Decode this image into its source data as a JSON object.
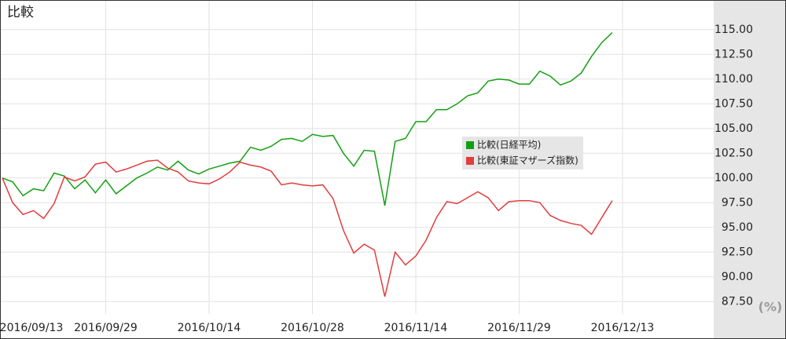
{
  "chart_data": {
    "type": "line",
    "title": "比較",
    "y_unit": "(%)",
    "categories": [
      "2016/09/13",
      null,
      null,
      null,
      null,
      null,
      null,
      null,
      null,
      null,
      "2016/09/29",
      null,
      null,
      null,
      null,
      null,
      null,
      null,
      null,
      null,
      "2016/10/14",
      null,
      null,
      null,
      null,
      null,
      null,
      null,
      null,
      null,
      "2016/10/28",
      null,
      null,
      null,
      null,
      null,
      null,
      null,
      null,
      null,
      "2016/11/14",
      null,
      null,
      null,
      null,
      null,
      null,
      null,
      null,
      null,
      "2016/11/29",
      null,
      null,
      null,
      null,
      null,
      null,
      null,
      null,
      null,
      "2016/12/13"
    ],
    "series": [
      {
        "name": "比較(日経平均)",
        "color": "#12a012",
        "values": [
          100.0,
          99.6,
          98.2,
          98.9,
          98.7,
          100.5,
          100.2,
          98.9,
          99.8,
          98.5,
          99.8,
          98.4,
          99.2,
          100.0,
          100.5,
          101.1,
          100.8,
          101.7,
          100.8,
          100.4,
          100.9,
          101.2,
          101.5,
          101.7,
          103.1,
          102.8,
          103.2,
          103.9,
          104.0,
          103.7,
          104.4,
          104.2,
          104.3,
          102.5,
          101.2,
          102.8,
          102.7,
          97.2,
          103.7,
          104.0,
          105.7,
          105.7,
          106.9,
          106.9,
          107.5,
          108.3,
          108.6,
          109.8,
          110.0,
          109.9,
          109.5,
          109.5,
          110.8,
          110.3,
          109.4,
          109.8,
          110.6,
          112.3,
          113.7,
          114.7,
          null
        ]
      },
      {
        "name": "比較(東証マザーズ指数)",
        "color": "#e23c3c",
        "values": [
          100.0,
          97.5,
          96.3,
          96.7,
          95.9,
          97.4,
          100.1,
          99.7,
          100.1,
          101.4,
          101.6,
          100.6,
          100.9,
          101.3,
          101.7,
          101.8,
          101.0,
          100.6,
          99.7,
          99.5,
          99.4,
          99.9,
          100.6,
          101.6,
          101.3,
          101.1,
          100.7,
          99.3,
          99.5,
          99.3,
          99.2,
          99.3,
          97.9,
          94.7,
          92.4,
          93.3,
          92.7,
          88.0,
          92.5,
          91.2,
          92.1,
          93.7,
          96.0,
          97.6,
          97.4,
          98.0,
          98.6,
          98.0,
          96.7,
          97.6,
          97.7,
          97.7,
          97.5,
          96.2,
          95.7,
          95.4,
          95.2,
          94.3,
          96.0,
          97.7,
          null
        ]
      }
    ],
    "ylim": [
      86.25,
      118.0
    ],
    "yticks": [
      {
        "value": 87.5,
        "label": "87.50"
      },
      {
        "value": 90,
        "label": "90.00"
      },
      {
        "value": 92.5,
        "label": "92.50"
      },
      {
        "value": 95,
        "label": "95.00"
      },
      {
        "value": 97.5,
        "label": "97.50"
      },
      {
        "value": 100,
        "label": "100.00"
      },
      {
        "value": 102.5,
        "label": "102.50"
      },
      {
        "value": 105,
        "label": "105.00"
      },
      {
        "value": 107.5,
        "label": "107.50"
      },
      {
        "value": 110,
        "label": "110.00"
      },
      {
        "value": 112.5,
        "label": "112.50"
      },
      {
        "value": 115,
        "label": "115.00"
      }
    ],
    "grid": true
  }
}
